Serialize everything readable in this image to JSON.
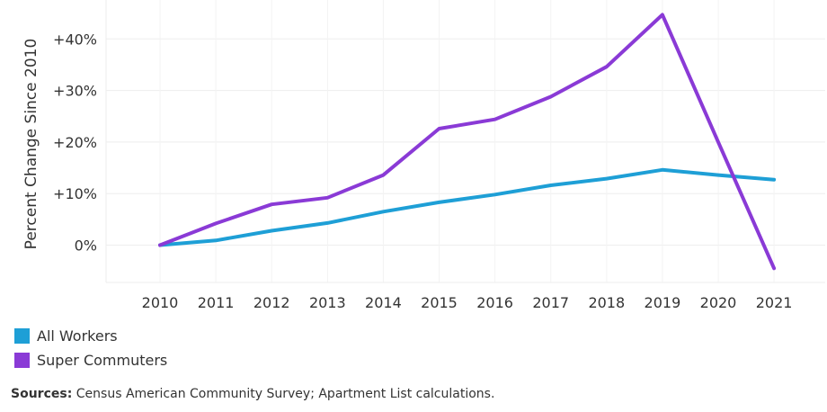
{
  "chart_data": {
    "type": "line",
    "categories": [
      "2010",
      "2011",
      "2012",
      "2013",
      "2014",
      "2015",
      "2016",
      "2017",
      "2018",
      "2019",
      "2020",
      "2021"
    ],
    "series": [
      {
        "name": "All Workers",
        "color": "#1e9fd6",
        "values": [
          0,
          0.9,
          2.8,
          4.3,
          6.5,
          8.3,
          9.8,
          11.6,
          12.9,
          14.6,
          13.6,
          12.7
        ]
      },
      {
        "name": "Super Commuters",
        "color": "#8a3ad6",
        "values": [
          0,
          4.2,
          7.9,
          9.2,
          13.6,
          22.6,
          24.4,
          28.8,
          34.6,
          44.7,
          20.0,
          -4.5
        ]
      }
    ],
    "ylabel": "Percent Change Since 2010",
    "yticks": [
      0,
      10,
      20,
      30,
      40
    ],
    "ytick_labels": [
      "0%",
      "+10%",
      "+20%",
      "+30%",
      "+40%"
    ],
    "ylim": [
      -7,
      51
    ],
    "grid": true,
    "legend_position": "bottom-left"
  },
  "source": {
    "label": "Sources:",
    "text": "Census American Community Survey; Apartment List calculations."
  }
}
